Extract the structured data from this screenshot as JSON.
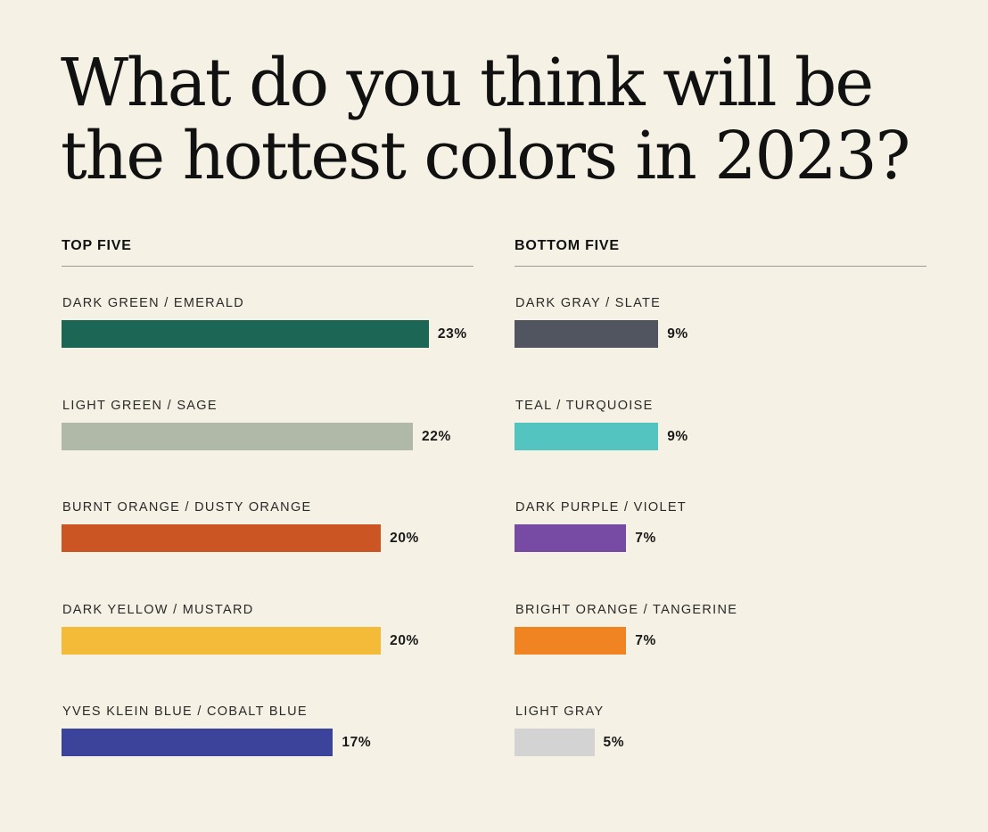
{
  "title_lines": [
    "What do you think will be",
    "the hottest colors in 2023?"
  ],
  "chart_data": [
    {
      "type": "bar",
      "orientation": "horizontal",
      "title": "TOP FIVE",
      "categories": [
        "DARK GREEN / EMERALD",
        "LIGHT GREEN / SAGE",
        "BURNT ORANGE / DUSTY ORANGE",
        "DARK YELLOW / MUSTARD",
        "YVES KLEIN BLUE / COBALT BLUE"
      ],
      "values": [
        23,
        22,
        20,
        20,
        17
      ],
      "value_labels": [
        "23%",
        "22%",
        "20%",
        "20%",
        "17%"
      ],
      "colors": [
        "#1c6656",
        "#b0b9a7",
        "#cc5524",
        "#f3bb38",
        "#3b439b"
      ],
      "xlim": [
        0,
        25.8
      ]
    },
    {
      "type": "bar",
      "orientation": "horizontal",
      "title": "BOTTOM FIVE",
      "categories": [
        "DARK GRAY / SLATE",
        "TEAL / TURQUOISE",
        "DARK PURPLE / VIOLET",
        "BRIGHT ORANGE / TANGERINE",
        "LIGHT GRAY"
      ],
      "values": [
        9,
        9,
        7,
        7,
        5
      ],
      "value_labels": [
        "9%",
        "9%",
        "7%",
        "7%",
        "5%"
      ],
      "colors": [
        "#51555f",
        "#54c4c0",
        "#774aa4",
        "#f18422",
        "#d3d3d3"
      ],
      "xlim": [
        0,
        25.8
      ]
    }
  ]
}
